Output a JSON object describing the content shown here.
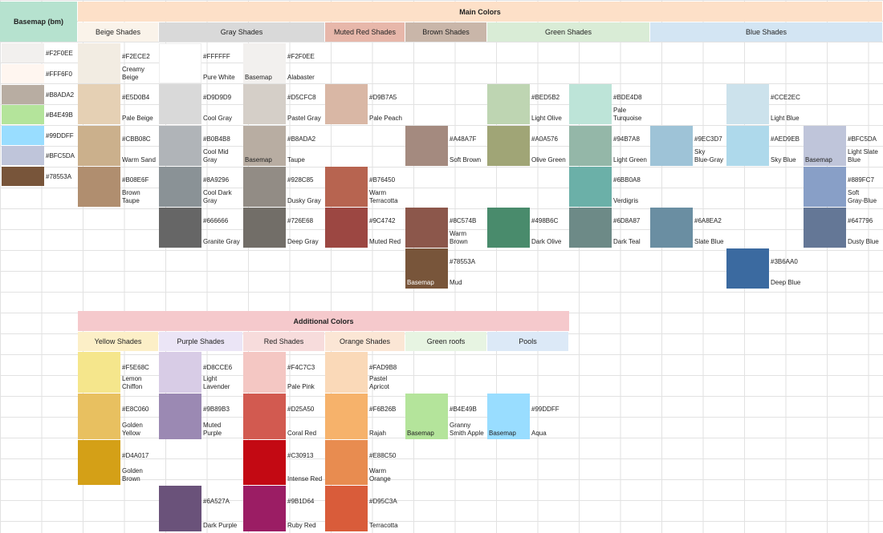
{
  "basemap_header": "Basemap (bm)",
  "main_title": "Main Colors",
  "additional_title": "Additional Colors",
  "colors": {
    "basemap_header": "#b6e2cf",
    "main_title": "#fde0c8",
    "additional_title": "#f5c9cc",
    "beige": "#faf3ea",
    "gray": "#d9d9d9",
    "muted_red": "#e7b7aa",
    "brown": "#c9b6a9",
    "green": "#d9ecd6",
    "blue": "#d3e5f3",
    "yellow": "#fcefc7",
    "purple": "#ebe5f6",
    "red": "#f7dcdc",
    "orange": "#fbe6d5",
    "green_roofs": "#e7f4e2",
    "pools": "#dce9f7"
  },
  "main_groups": [
    {
      "key": "beige",
      "label": "Beige Shades"
    },
    {
      "key": "gray",
      "label": "Gray Shades"
    },
    {
      "key": "muted_red",
      "label": "Muted Red Shades"
    },
    {
      "key": "brown",
      "label": "Brown Shades"
    },
    {
      "key": "green",
      "label": "Green Shades"
    },
    {
      "key": "blue",
      "label": "Blue Shades"
    }
  ],
  "additional_groups": [
    {
      "key": "yellow",
      "label": "Yellow Shades"
    },
    {
      "key": "purple",
      "label": "Purple Shades"
    },
    {
      "key": "red",
      "label": "Red Shades"
    },
    {
      "key": "orange",
      "label": "Orange Shades"
    },
    {
      "key": "green_roofs",
      "label": "Green roofs"
    },
    {
      "key": "pools",
      "label": "Pools"
    }
  ],
  "basemap_swatches": [
    {
      "hex": "#F2F0EE",
      "color": "#F2F0EE"
    },
    {
      "hex": "#FFF6F0",
      "color": "#FFF6F0"
    },
    {
      "hex": "#B8ADA2",
      "color": "#B8ADA2"
    },
    {
      "hex": "#B4E49B",
      "color": "#B4E49B"
    },
    {
      "hex": "#99DDFF",
      "color": "#99DDFF"
    },
    {
      "hex": "#BFC5DA",
      "color": "#BFC5DA"
    },
    {
      "hex": "#78553A",
      "color": "#78553A"
    }
  ],
  "main_swatches": [
    {
      "col": 1,
      "row": 0,
      "hex": "#F2ECE2",
      "name": "Creamy\nBeige",
      "color": "#F2ECE2"
    },
    {
      "col": 1,
      "row": 1,
      "hex": "#E5D0B4",
      "name": "Pale Beige",
      "color": "#E5D0B4"
    },
    {
      "col": 1,
      "row": 2,
      "hex": "#CBB08C",
      "name": "Warm Sand",
      "color": "#CBB08C"
    },
    {
      "col": 1,
      "row": 3,
      "hex": "#B08E6F",
      "name": "Brown\nTaupe",
      "color": "#B08E6F"
    },
    {
      "col": 2,
      "row": 0,
      "hex": "#FFFFFF",
      "name": "Pure White",
      "color": "#FFFFFF"
    },
    {
      "col": 2,
      "row": 1,
      "hex": "#D9D9D9",
      "name": "Cool Gray",
      "color": "#D9D9D9"
    },
    {
      "col": 2,
      "row": 2,
      "hex": "#B0B4B8",
      "name": "Cool Mid\nGray",
      "color": "#B0B4B8"
    },
    {
      "col": 2,
      "row": 3,
      "hex": "#8A9296",
      "name": "Cool Dark\nGray",
      "color": "#8A9296"
    },
    {
      "col": 2,
      "row": 4,
      "hex": "#666666",
      "name": "Granite Gray",
      "color": "#666666"
    },
    {
      "col": 3,
      "row": 0,
      "hex": "#F2F0EE",
      "name": "Alabaster",
      "color": "#F2F0EE",
      "tag": "Basemap"
    },
    {
      "col": 3,
      "row": 1,
      "hex": "#D5CFC8",
      "name": "Pastel Gray",
      "color": "#D5CFC8"
    },
    {
      "col": 3,
      "row": 2,
      "hex": "#B8ADA2",
      "name": "Taupe",
      "color": "#B8ADA2",
      "tag": "Basemap"
    },
    {
      "col": 3,
      "row": 3,
      "hex": "#928C85",
      "name": "Dusky Gray",
      "color": "#928C85"
    },
    {
      "col": 3,
      "row": 4,
      "hex": "#726E68",
      "name": "Deep Gray",
      "color": "#726E68"
    },
    {
      "col": 4,
      "row": 1,
      "hex": "#D9B7A5",
      "name": "Pale Peach",
      "color": "#D9B7A5"
    },
    {
      "col": 4,
      "row": 3,
      "hex": "#B76450",
      "name": "Warm\nTerracotta",
      "color": "#B76450"
    },
    {
      "col": 4,
      "row": 4,
      "hex": "#9C4742",
      "name": "Muted Red",
      "color": "#9C4742"
    },
    {
      "col": 5,
      "row": 2,
      "hex": "#A48A7F",
      "name": "Soft Brown",
      "color": "#A48A7F"
    },
    {
      "col": 5,
      "row": 4,
      "hex": "#8C574B",
      "name": "Warm\nBrown",
      "color": "#8C574B"
    },
    {
      "col": 5,
      "row": 5,
      "hex": "#78553A",
      "name": "Mud",
      "color": "#78553A",
      "tag": "Basemap"
    },
    {
      "col": 6,
      "row": 1,
      "hex": "#BED5B2",
      "name": "Light Olive",
      "color": "#BED5B2"
    },
    {
      "col": 6,
      "row": 2,
      "hex": "#A0A576",
      "name": "Olive Green",
      "color": "#A0A576"
    },
    {
      "col": 6,
      "row": 4,
      "hex": "#498B6C",
      "name": "Dark Olive",
      "color": "#498B6C"
    },
    {
      "col": 7,
      "row": 1,
      "hex": "#BDE4D8",
      "name": "Pale\nTurquoise",
      "color": "#BDE4D8"
    },
    {
      "col": 7,
      "row": 2,
      "hex": "#94B7A8",
      "name": "Light Green",
      "color": "#94B7A8"
    },
    {
      "col": 7,
      "row": 3,
      "hex": "#6BB0A8",
      "name": "Verdigris",
      "color": "#6BB0A8"
    },
    {
      "col": 7,
      "row": 4,
      "hex": "#6D8A87",
      "name": "Dark Teal",
      "color": "#6D8A87"
    },
    {
      "col": 8,
      "row": 2,
      "hex": "#9EC3D7",
      "name": "Sky\nBlue-Gray",
      "color": "#9EC3D7"
    },
    {
      "col": 8,
      "row": 4,
      "hex": "#6A8EA2",
      "name": "Slate Blue",
      "color": "#6A8EA2"
    },
    {
      "col": 9,
      "row": 1,
      "hex": "#CCE2EC",
      "name": "Light Blue",
      "color": "#CCE2EC"
    },
    {
      "col": 9,
      "row": 2,
      "hex": "#AED9EB",
      "name": "Sky Blue",
      "color": "#AED9EB"
    },
    {
      "col": 9,
      "row": 5,
      "hex": "#3B6AA0",
      "name": "Deep Blue",
      "color": "#3B6AA0"
    },
    {
      "col": 10,
      "row": 2,
      "hex": "#BFC5DA",
      "name": "Light Slate\nBlue",
      "color": "#BFC5DA",
      "tag": "Basemap"
    },
    {
      "col": 10,
      "row": 3,
      "hex": "#889FC7",
      "name": "Soft\nGray-Blue",
      "color": "#889FC7"
    },
    {
      "col": 10,
      "row": 4,
      "hex": "#647796",
      "name": "Dusty Blue",
      "color": "#647796"
    }
  ],
  "additional_swatches": [
    {
      "col": 1,
      "row": 0,
      "hex": "#F5E68C",
      "name": "Lemon\nChiffon",
      "color": "#F5E68C"
    },
    {
      "col": 1,
      "row": 1,
      "hex": "#E8C060",
      "name": "Golden\nYellow",
      "color": "#E8C060"
    },
    {
      "col": 1,
      "row": 2,
      "hex": "#D4A017",
      "name": "Golden\nBrown",
      "color": "#D4A017"
    },
    {
      "col": 2,
      "row": 0,
      "hex": "#D8CCE6",
      "name": "Light\nLavender",
      "color": "#D8CCE6"
    },
    {
      "col": 2,
      "row": 1,
      "hex": "#9B89B3",
      "name": "Muted\nPurple",
      "color": "#9B89B3"
    },
    {
      "col": 2,
      "row": 3,
      "hex": "#6A527A",
      "name": "Dark Purple",
      "color": "#6A527A"
    },
    {
      "col": 3,
      "row": 0,
      "hex": "#F4C7C3",
      "name": "Pale Pink",
      "color": "#F4C7C3"
    },
    {
      "col": 3,
      "row": 1,
      "hex": "#D25A50",
      "name": "Coral Red",
      "color": "#D25A50"
    },
    {
      "col": 3,
      "row": 2,
      "hex": "#C30913",
      "name": "Intense Red",
      "color": "#C30913"
    },
    {
      "col": 3,
      "row": 3,
      "hex": "#9B1D64",
      "name": "Ruby Red",
      "color": "#9B1D64"
    },
    {
      "col": 4,
      "row": 0,
      "hex": "#FAD9B8",
      "name": "Pastel\nApricot",
      "color": "#FAD9B8"
    },
    {
      "col": 4,
      "row": 1,
      "hex": "#F6B26B",
      "name": "Rajah",
      "color": "#F6B26B"
    },
    {
      "col": 4,
      "row": 2,
      "hex": "#E88C50",
      "name": "Warm\nOrange",
      "color": "#E88C50"
    },
    {
      "col": 4,
      "row": 3,
      "hex": "#D95C3A",
      "name": "Terracotta",
      "color": "#D95C3A"
    },
    {
      "col": 5,
      "row": 1,
      "hex": "#B4E49B",
      "name": "Granny\nSmith Apple",
      "color": "#B4E49B",
      "tag": "Basemap"
    },
    {
      "col": 6,
      "row": 1,
      "hex": "#99DDFF",
      "name": "Aqua",
      "color": "#99DDFF",
      "tag": "Basemap"
    }
  ]
}
